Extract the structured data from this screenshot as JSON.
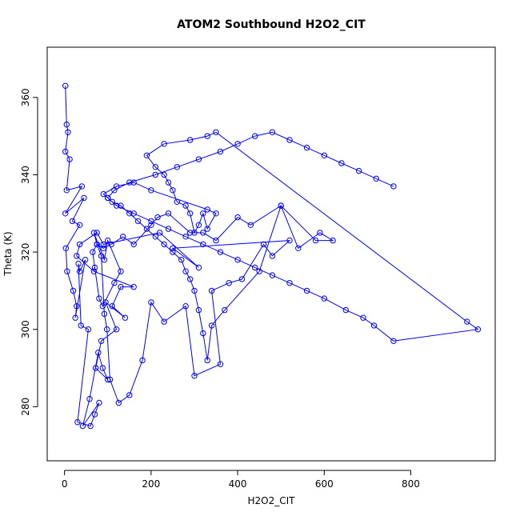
{
  "chart_data": {
    "type": "scatter",
    "title": "ATOM2 Southbound H2O2_CIT",
    "xlabel": "H2O2_CIT",
    "ylabel": "Theta (K)",
    "xlim": [
      -40,
      995
    ],
    "ylim": [
      266,
      373
    ],
    "xticks": [
      0,
      200,
      400,
      600,
      800
    ],
    "yticks": [
      280,
      300,
      320,
      340,
      360
    ],
    "grid": false,
    "legend": "none",
    "color": "#0000ff",
    "series": [
      {
        "x": [
          2,
          5,
          8,
          2,
          12,
          5,
          40,
          2,
          45,
          18,
          35,
          3,
          6,
          20,
          28,
          25,
          48,
          35,
          32,
          38,
          55,
          30,
          60,
          70,
          80,
          42,
          58,
          78,
          88,
          100,
          72,
          85,
          120,
          95,
          140,
          110,
          130,
          160,
          68,
          28,
          35,
          75,
          90,
          220,
          310,
          250,
          520,
          480,
          460,
          410,
          380,
          340,
          360,
          300,
          280,
          230,
          200,
          180,
          150,
          125,
          105,
          98,
          92,
          85,
          75,
          65,
          70,
          80,
          88,
          115,
          130,
          100,
          92,
          68,
          75,
          90,
          108,
          135,
          160,
          200,
          215,
          240,
          290,
          320,
          350,
          400,
          430,
          500,
          580,
          620,
          590,
          540,
          500,
          450,
          370,
          340,
          330,
          320,
          310,
          300,
          290,
          280,
          270,
          250,
          230,
          210,
          190,
          170,
          150,
          130,
          110,
          100,
          90,
          120,
          160,
          200,
          330,
          350,
          330,
          320,
          310,
          300,
          290,
          280,
          260,
          250,
          240,
          230,
          210,
          190,
          230,
          290,
          330,
          350,
          930,
          955,
          760,
          715,
          690,
          650,
          600,
          560,
          520,
          480,
          440,
          400,
          360,
          320,
          280,
          240,
          200,
          160,
          120,
          100,
          115,
          150,
          210,
          260,
          310,
          360,
          400,
          440,
          480,
          520,
          560,
          600,
          640,
          680,
          720,
          760
        ],
        "y": [
          363,
          353,
          351,
          346,
          344,
          336,
          337,
          330,
          334,
          328,
          327,
          321,
          315,
          310,
          306,
          303,
          318,
          315,
          317,
          301,
          300,
          276,
          275,
          278,
          281,
          275,
          282,
          294,
          290,
          287,
          290,
          297,
          300,
          307,
          303,
          306,
          311,
          311,
          315,
          319,
          322,
          325,
          322,
          325,
          316,
          321,
          323,
          319,
          322,
          313,
          312,
          310,
          291,
          288,
          306,
          302,
          307,
          292,
          283,
          281,
          287,
          300,
          304,
          319,
          322,
          320,
          316,
          308,
          306,
          312,
          315,
          323,
          318,
          325,
          322,
          321,
          322,
          324,
          322,
          327,
          329,
          330,
          325,
          325,
          323,
          329,
          327,
          332,
          323,
          323,
          325,
          321,
          332,
          315,
          305,
          301,
          292,
          299,
          305,
          310,
          313,
          315,
          318,
          320,
          322,
          324,
          326,
          328,
          330,
          332,
          333,
          334,
          335,
          337,
          338,
          336,
          331,
          330,
          326,
          330,
          327,
          325,
          330,
          332,
          333,
          336,
          338,
          340,
          342,
          345,
          348,
          349,
          350,
          351,
          302,
          300,
          297,
          301,
          303,
          305,
          308,
          310,
          312,
          314,
          316,
          318,
          320,
          322,
          324,
          326,
          328,
          330,
          332,
          334,
          336,
          338,
          340,
          342,
          344,
          346,
          348,
          350,
          351,
          349,
          347,
          345,
          343,
          341,
          339,
          337
        ]
      }
    ]
  }
}
